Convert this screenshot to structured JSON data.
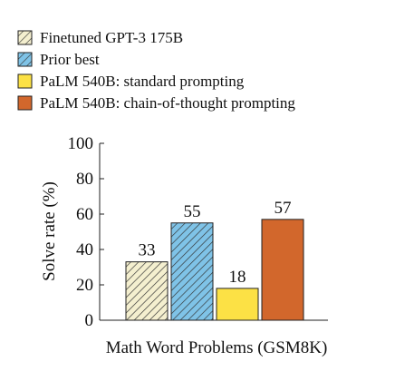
{
  "chart_data": {
    "type": "bar",
    "categories": [
      "Math Word Problems (GSM8K)"
    ],
    "series": [
      {
        "name": "Finetuned GPT-3 175B",
        "values": [
          33
        ],
        "color": "#f4efcf",
        "pattern": "hatch"
      },
      {
        "name": "Prior best",
        "values": [
          55
        ],
        "color": "#7fc3e7",
        "pattern": "hatch"
      },
      {
        "name": "PaLM 540B: standard prompting",
        "values": [
          18
        ],
        "color": "#fce145",
        "pattern": "solid"
      },
      {
        "name": "PaLM 540B: chain-of-thought prompting",
        "values": [
          57
        ],
        "color": "#d2672c",
        "pattern": "solid"
      }
    ],
    "xlabel": "Math Word Problems (GSM8K)",
    "ylabel": "Solve rate (%)",
    "ylim": [
      0,
      100
    ],
    "yticks": [
      "0",
      "20",
      "40",
      "60",
      "80",
      "100"
    ],
    "data_labels": [
      "33",
      "55",
      "18",
      "57"
    ],
    "grid": false,
    "legend": "top-left"
  }
}
